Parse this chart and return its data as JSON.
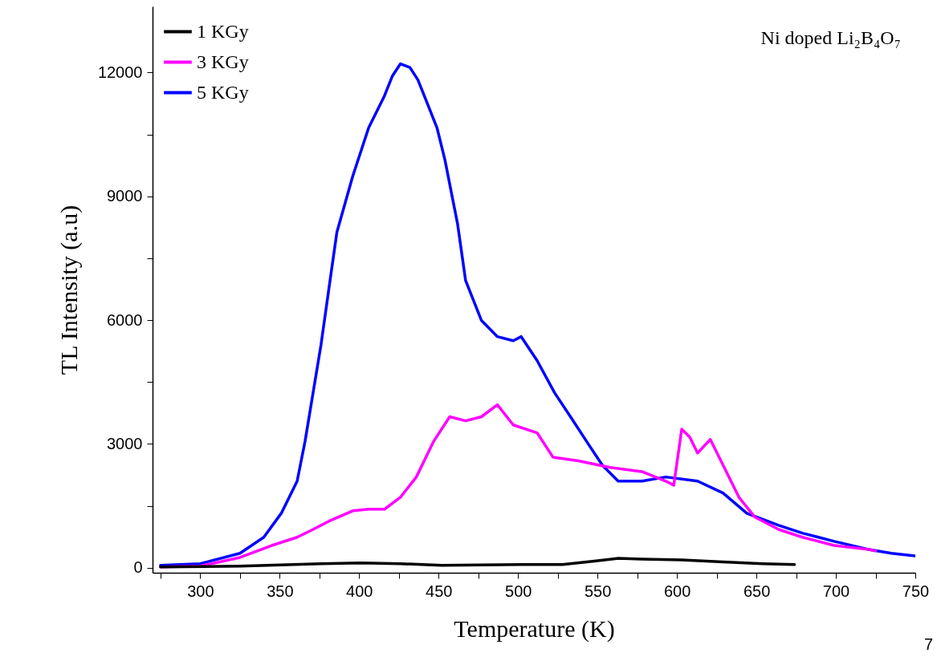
{
  "chart_data": {
    "type": "line",
    "xlabel": "Temperature  (K)",
    "ylabel": "TL Intensity (a.u)",
    "annotations": [
      "Ni doped Li₂B₄O₇",
      "7"
    ],
    "xlim": [
      270,
      750
    ],
    "ylim": [
      -120,
      13600
    ],
    "xticks": [
      {
        "value": 275,
        "label": null
      },
      300,
      {
        "value": 325,
        "label": null
      },
      350,
      {
        "value": 375,
        "label": null
      },
      400,
      {
        "value": 425,
        "label": null
      },
      450,
      {
        "value": 475,
        "label": null
      },
      500,
      {
        "value": 525,
        "label": null
      },
      550,
      {
        "value": 575,
        "label": null
      },
      600,
      {
        "value": 625,
        "label": null
      },
      650,
      {
        "value": 675,
        "label": null
      },
      700,
      {
        "value": 725,
        "label": null
      },
      750
    ],
    "yticks": [
      0,
      {
        "value": 1500,
        "label": null
      },
      3000,
      {
        "value": 4500,
        "label": null
      },
      6000,
      {
        "value": 7500,
        "label": null
      },
      9000,
      {
        "value": 10500,
        "label": null
      },
      12000
    ],
    "grid": false,
    "legend": "top left",
    "line_style": "solid",
    "marker": "none",
    "series": [
      {
        "name": "1 KGy",
        "color": "#000000",
        "x": [
          275,
          325,
          376,
          401,
          426,
          452,
          502,
          528,
          548,
          563,
          578,
          603,
          629,
          654,
          674
        ],
        "values": [
          20,
          40,
          100,
          120,
          100,
          60,
          80,
          80,
          160,
          230,
          210,
          190,
          140,
          100,
          80
        ]
      },
      {
        "name": "3 KGy",
        "color": "#ff00ff",
        "x": [
          275,
          300,
          325,
          345,
          361,
          371,
          381,
          396,
          406,
          416,
          426,
          436,
          447,
          457,
          467,
          477,
          487,
          497,
          512,
          522,
          538,
          558,
          578,
          593,
          598,
          603,
          608,
          613,
          621,
          629,
          639,
          649,
          664,
          679,
          699,
          720,
          725
        ],
        "values": [
          20,
          40,
          250,
          540,
          740,
          930,
          1130,
          1380,
          1420,
          1420,
          1710,
          2200,
          3070,
          3660,
          3560,
          3660,
          3950,
          3460,
          3270,
          2680,
          2590,
          2430,
          2330,
          2100,
          2000,
          3360,
          3170,
          2780,
          3110,
          2490,
          1710,
          1230,
          930,
          740,
          540,
          450,
          410
        ]
      },
      {
        "name": "5 KGy",
        "color": "#0000ff",
        "x": [
          275,
          300,
          325,
          340,
          351,
          361,
          366,
          376,
          381,
          386,
          396,
          406,
          416,
          421,
          426,
          432,
          437,
          442,
          449,
          454,
          462,
          467,
          477,
          487,
          497,
          502,
          512,
          523,
          533,
          543,
          553,
          563,
          578,
          593,
          613,
          629,
          644,
          664,
          679,
          699,
          720,
          735,
          750
        ],
        "values": [
          60,
          100,
          350,
          740,
          1320,
          2100,
          3070,
          5400,
          6770,
          8130,
          9490,
          10660,
          11440,
          11920,
          12210,
          12120,
          11820,
          11340,
          10660,
          9880,
          8320,
          6960,
          5990,
          5600,
          5500,
          5600,
          5020,
          4240,
          3660,
          3070,
          2490,
          2100,
          2100,
          2200,
          2100,
          1810,
          1320,
          1030,
          840,
          640,
          450,
          350,
          290
        ]
      }
    ]
  }
}
